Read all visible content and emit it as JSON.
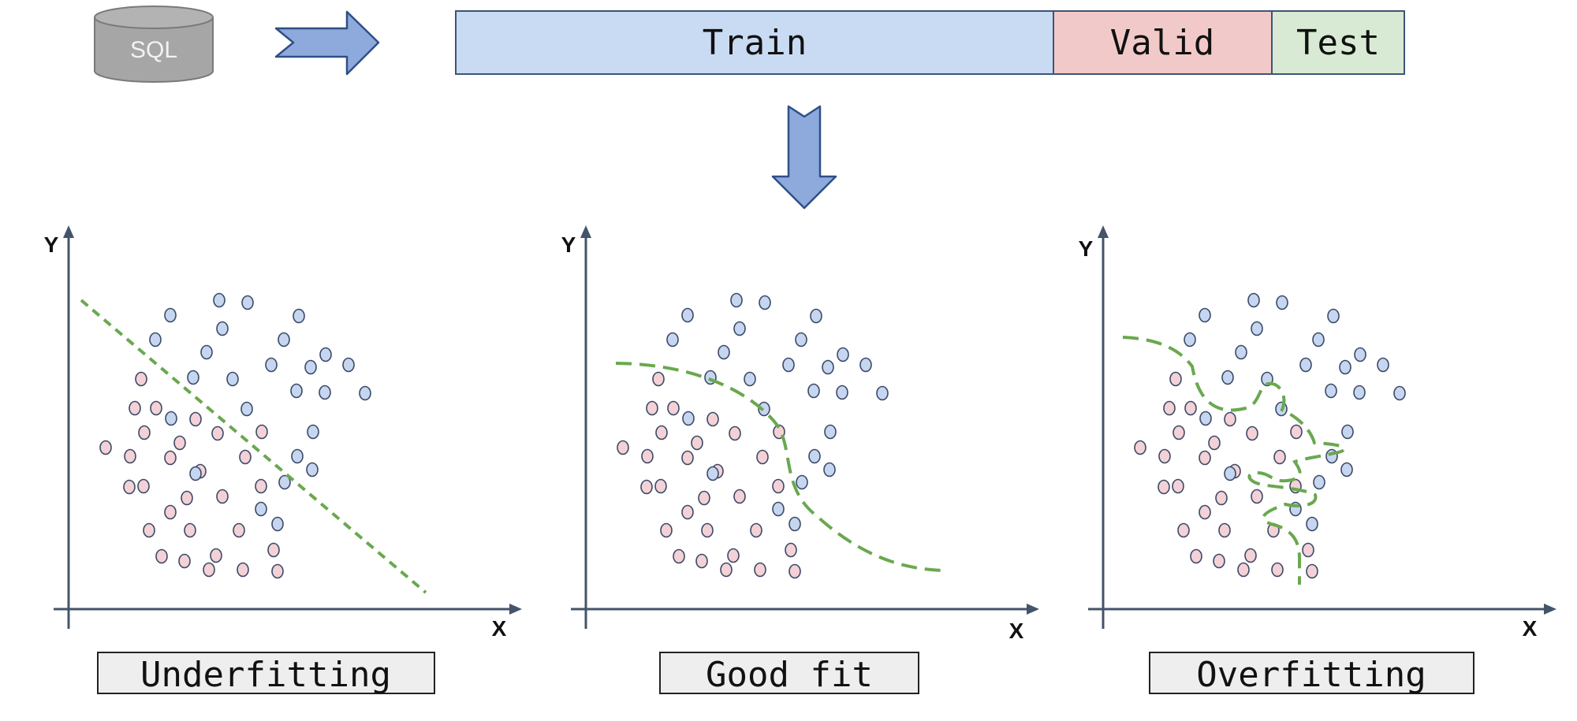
{
  "source": {
    "label": "SQL"
  },
  "split": {
    "train": "Train",
    "valid": "Valid",
    "test": "Test"
  },
  "colors": {
    "train_fill": "#c9daf3",
    "valid_fill": "#f2c9c9",
    "test_fill": "#d8ead3",
    "box_stroke": "#3d5478",
    "arrow_fill": "#8ea9dc",
    "arrow_stroke": "#2f4f86",
    "db_fill": "#a6a6a6",
    "db_stroke": "#7a7a7a",
    "blue_point": "#c6d6f1",
    "pink_point": "#f3d1d6",
    "point_stroke": "#3a4a66",
    "boundary": "#6aa84f",
    "axis": "#44546a",
    "label_fill": "#eeeeee"
  },
  "panels": [
    {
      "caption": "Underfitting",
      "y_axis": "Y",
      "x_axis": "X"
    },
    {
      "caption": "Good fit",
      "y_axis": "Y",
      "x_axis": "X"
    },
    {
      "caption": "Overfitting",
      "y_axis": "Y",
      "x_axis": "X"
    }
  ]
}
